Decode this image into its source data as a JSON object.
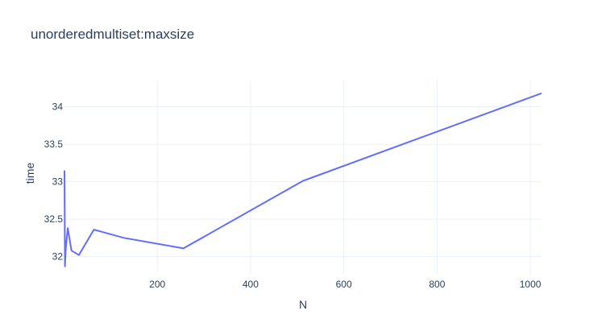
{
  "chart_data": {
    "type": "line",
    "title": "unorderedmultiset:maxsize",
    "xlabel": "N",
    "ylabel": "time",
    "xlim": [
      1,
      1024
    ],
    "ylim": [
      31.77,
      34.35
    ],
    "xticks": [
      200,
      400,
      600,
      800,
      1000
    ],
    "xtick_labels": [
      "200",
      "400",
      "600",
      "800",
      "1000"
    ],
    "yticks": [
      32,
      32.5,
      33,
      33.5,
      34
    ],
    "ytick_labels": [
      "32",
      "32.5",
      "33",
      "33.5",
      "34"
    ],
    "grid": true,
    "legend": "none",
    "colors": {
      "line": "#636efa",
      "grid": "#ebf0f8",
      "text": "#2a3f5f"
    },
    "series": [
      {
        "x": [
          1,
          2,
          4,
          8,
          16,
          32,
          64,
          128,
          256,
          512,
          1024
        ],
        "y": [
          33.15,
          31.87,
          32.12,
          32.38,
          32.08,
          32.02,
          32.36,
          32.25,
          32.11,
          33.01,
          34.18
        ]
      }
    ]
  }
}
